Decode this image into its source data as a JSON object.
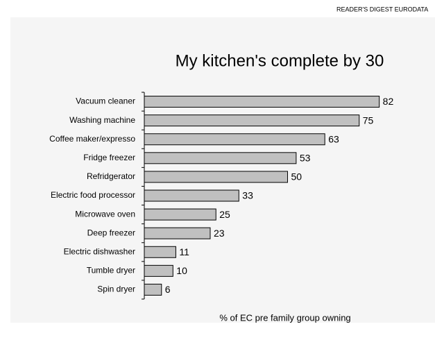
{
  "chart_data": {
    "type": "bar",
    "orientation": "horizontal",
    "source": "READER'S DIGEST EURODATA",
    "title": "My kitchen's complete by 30",
    "x_label": "% of EC pre family group owning",
    "categories": [
      "Vacuum cleaner",
      "Washing machine",
      "Coffee maker/expresso",
      "Fridge freezer",
      "Refridgerator",
      "Electric food processor",
      "Microwave oven",
      "Deep freezer",
      "Electric dishwasher",
      "Tumble dryer",
      "Spin dryer"
    ],
    "values": [
      82,
      75,
      63,
      53,
      50,
      33,
      25,
      23,
      11,
      10,
      6
    ],
    "color": "#c0c0c0",
    "xlim": [
      0,
      100
    ]
  }
}
